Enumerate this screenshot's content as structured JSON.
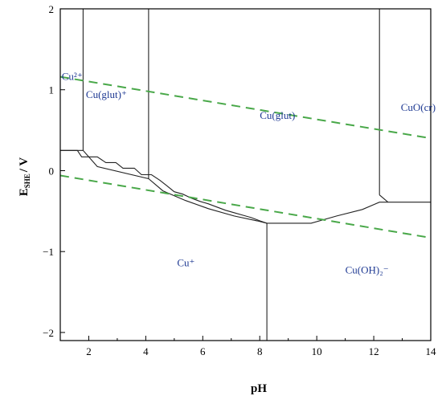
{
  "chart_data": {
    "type": "line",
    "title": "",
    "xlabel": "pH",
    "ylabel_main": "E",
    "ylabel_sub": "SHE",
    "ylabel_tail": "/ V",
    "xlim": [
      1,
      14
    ],
    "ylim": [
      -2.1,
      2
    ],
    "x_ticks": [
      2,
      4,
      6,
      8,
      10,
      12,
      14
    ],
    "y_ticks": [
      2,
      1,
      0,
      -1,
      -2
    ],
    "y_tick_labels": [
      "2",
      "1",
      "0",
      "−1",
      "−2"
    ],
    "grid": false,
    "regions": [
      {
        "label": "Cu²⁺",
        "x": 1.05,
        "y": 1.12
      },
      {
        "label": "Cu(glut)⁺",
        "x": 1.9,
        "y": 0.9
      },
      {
        "label": "Cu(glut)",
        "x": 8.0,
        "y": 0.64
      },
      {
        "label": "CuO(cr)",
        "x": 12.95,
        "y": 0.74
      },
      {
        "label": "Cu⁺",
        "x": 5.1,
        "y": -1.18
      },
      {
        "label": "Cu(OH)₂⁻",
        "x": 11.0,
        "y": -1.27
      }
    ],
    "series": [
      {
        "kind": "boundary",
        "x": [
          1.8,
          1.8
        ],
        "y": [
          2,
          0.25
        ]
      },
      {
        "kind": "boundary",
        "x": [
          4.1,
          4.1
        ],
        "y": [
          2,
          -0.1
        ]
      },
      {
        "kind": "boundary",
        "x": [
          12.2,
          12.2
        ],
        "y": [
          2,
          -0.3
        ]
      },
      {
        "kind": "boundary",
        "x": [
          8.25,
          8.25
        ],
        "y": [
          -0.65,
          -2.1
        ]
      },
      {
        "kind": "boundary",
        "x": [
          1,
          1.8,
          2.3,
          4.1,
          4.6,
          5.4,
          6.2,
          7.1,
          7.9,
          8.25,
          9.8,
          10.7,
          11.6,
          12.2,
          12.5,
          14
        ],
        "y": [
          0.25,
          0.25,
          0.05,
          -0.1,
          -0.25,
          -0.37,
          -0.47,
          -0.56,
          -0.62,
          -0.65,
          -0.65,
          -0.56,
          -0.48,
          -0.39,
          -0.39,
          -0.39
        ]
      },
      {
        "kind": "boundary",
        "x": [
          1.0,
          1.6,
          1.75,
          2.3,
          2.6,
          2.95,
          3.2,
          3.6,
          3.85,
          4.2,
          4.5,
          4.75,
          5.0,
          5.3,
          5.6,
          5.9,
          6.2,
          6.5,
          6.8,
          7.1,
          7.4,
          7.7,
          8.0,
          8.25
        ],
        "y": [
          0.25,
          0.25,
          0.17,
          0.17,
          0.1,
          0.1,
          0.03,
          0.03,
          -0.05,
          -0.05,
          -0.12,
          -0.19,
          -0.26,
          -0.29,
          -0.34,
          -0.38,
          -0.41,
          -0.45,
          -0.49,
          -0.52,
          -0.55,
          -0.58,
          -0.62,
          -0.65
        ]
      },
      {
        "kind": "boundary",
        "x": [
          12.2,
          12.5
        ],
        "y": [
          -0.3,
          -0.39
        ]
      },
      {
        "kind": "water",
        "x": [
          1,
          14
        ],
        "y": [
          1.16,
          0.4
        ]
      },
      {
        "kind": "water",
        "x": [
          1,
          14
        ],
        "y": [
          -0.06,
          -0.83
        ]
      }
    ]
  }
}
